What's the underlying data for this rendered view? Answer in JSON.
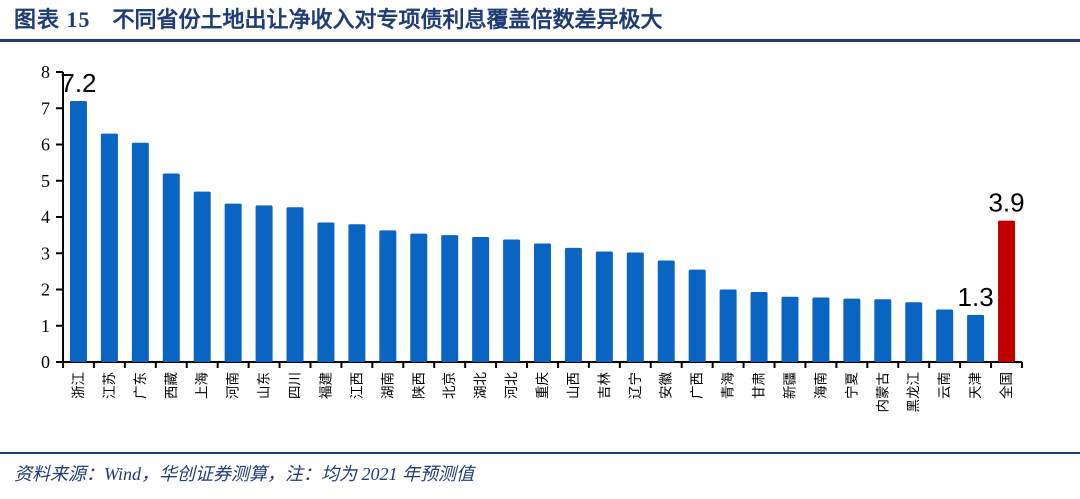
{
  "header": {
    "figure_label": "图表 15",
    "title": "不同省份土地出让净收入对专项债利息覆盖倍数差异极大"
  },
  "footer": {
    "source_note": "资料来源：Wind，华创证券测算，注：均为 2021 年预测值"
  },
  "colors": {
    "navy": "#1f3c74",
    "bar": "#0a64c2",
    "bar_highlight": "#c00000",
    "axis": "#000000",
    "data_label": "#000000"
  },
  "chart_data": {
    "type": "bar",
    "title": "不同省份土地出让净收入对专项债利息覆盖倍数差异极大",
    "categories": [
      "浙江",
      "江苏",
      "广东",
      "西藏",
      "上海",
      "河南",
      "山东",
      "四川",
      "福建",
      "江西",
      "湖南",
      "陕西",
      "北京",
      "湖北",
      "河北",
      "重庆",
      "山西",
      "吉林",
      "辽宁",
      "安徽",
      "广西",
      "青海",
      "甘肃",
      "新疆",
      "海南",
      "宁夏",
      "内蒙古",
      "黑龙江",
      "云南",
      "天津",
      "全国"
    ],
    "values": [
      7.2,
      6.3,
      6.05,
      5.2,
      4.7,
      4.37,
      4.32,
      4.27,
      3.85,
      3.8,
      3.63,
      3.54,
      3.5,
      3.45,
      3.38,
      3.27,
      3.15,
      3.05,
      3.02,
      2.8,
      2.55,
      2.0,
      1.93,
      1.8,
      1.78,
      1.75,
      1.73,
      1.65,
      1.45,
      1.3,
      3.9
    ],
    "highlight_category": "全国",
    "data_labels": [
      {
        "category": "浙江",
        "text": "7.2"
      },
      {
        "category": "天津",
        "text": "1.3"
      },
      {
        "category": "全国",
        "text": "3.9"
      }
    ],
    "xlabel": "",
    "ylabel": "",
    "ylim": [
      0,
      8
    ],
    "yticks": [
      0,
      1,
      2,
      3,
      4,
      5,
      6,
      7,
      8
    ],
    "grid": false,
    "legend": "none"
  }
}
